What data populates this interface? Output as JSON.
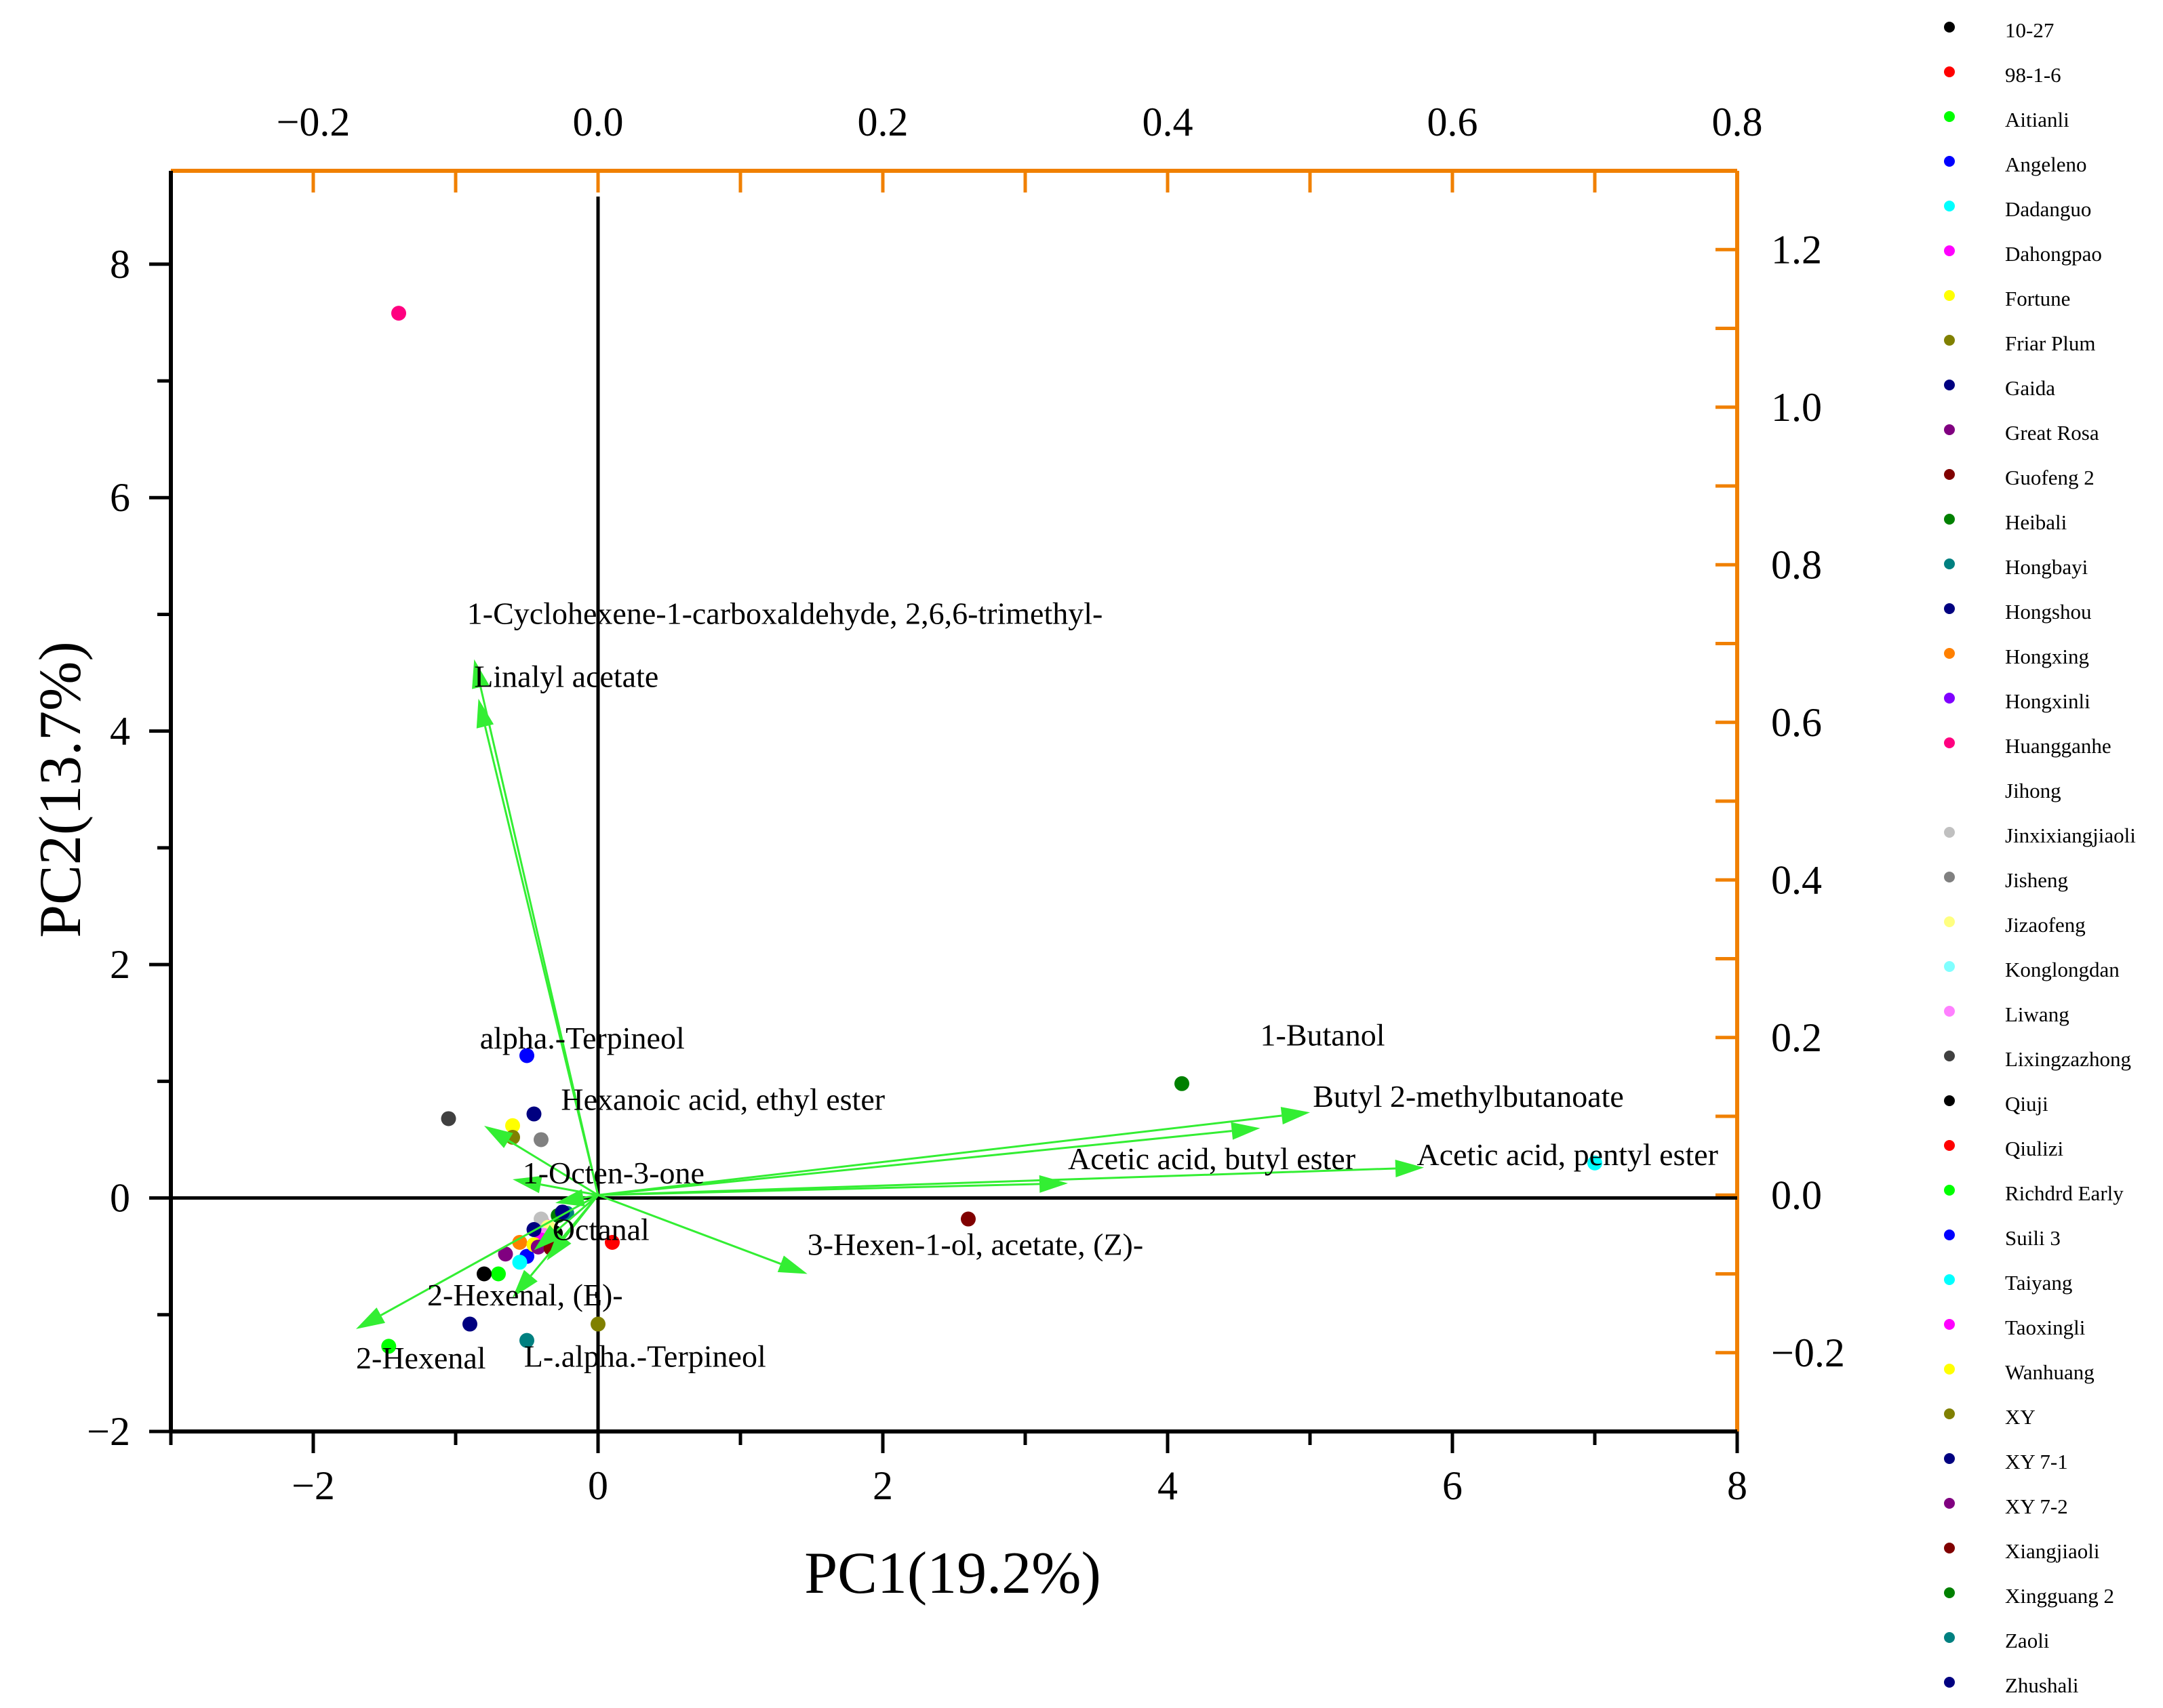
{
  "chart_data": {
    "type": "scatter",
    "subtype": "PCA biplot",
    "title": "",
    "xlabel": "PC1(19.2%)",
    "ylabel": "PC2(13.7%)",
    "xlim": [
      -3,
      8
    ],
    "ylim": [
      -2,
      8.8
    ],
    "xticks": [
      -2,
      0,
      2,
      4,
      6,
      8
    ],
    "yticks": [
      -2,
      0,
      2,
      4,
      6,
      8
    ],
    "xtick_labels": [
      "−2",
      "0",
      "2",
      "4",
      "6",
      "8"
    ],
    "ytick_labels": [
      "−2",
      "0",
      "2",
      "4",
      "6",
      "8"
    ],
    "secondary_axes": {
      "color": "#f08000",
      "top_lim": [
        -0.3,
        0.8
      ],
      "top_ticks": [
        -0.2,
        0.0,
        0.2,
        0.4,
        0.6,
        0.8
      ],
      "top_tick_labels": [
        "−0.2",
        "0.0",
        "0.2",
        "0.4",
        "0.6",
        "0.8"
      ],
      "right_lim": [
        -0.3,
        1.3
      ],
      "right_ticks": [
        -0.2,
        0.0,
        0.2,
        0.4,
        0.6,
        0.8,
        1.0,
        1.2
      ],
      "right_tick_labels": [
        "−0.2",
        "0.0",
        "0.2",
        "0.4",
        "0.6",
        "0.8",
        "1.0",
        "1.2"
      ]
    },
    "grid": false,
    "legend_position": "right",
    "loading_color": "#33ee33",
    "loadings": [
      {
        "name": "1-Cyclohexene-1-carboxaldehyde, 2,6,6-trimethyl-",
        "x": -0.087,
        "y": 0.68,
        "lx": -0.092,
        "ly": 0.725
      },
      {
        "name": "Linalyl acetate",
        "x": -0.084,
        "y": 0.63,
        "lx": -0.087,
        "ly": 0.645
      },
      {
        "name": "alpha.-Terpineol",
        "x": -0.08,
        "y": 0.088,
        "lx": -0.083,
        "ly": 0.186
      },
      {
        "name": "Hexanoic acid, ethyl ester",
        "x": -0.06,
        "y": 0.02,
        "lx": -0.026,
        "ly": 0.108
      },
      {
        "name": "1-Octen-3-one",
        "x": -0.03,
        "y": -0.01,
        "lx": -0.053,
        "ly": 0.015
      },
      {
        "name": "Octanal",
        "x": -0.045,
        "y": -0.07,
        "lx": -0.032,
        "ly": -0.057
      },
      {
        "name": "2-Hexenal, (E)-",
        "x": -0.06,
        "y": -0.13,
        "lx": -0.12,
        "ly": -0.14
      },
      {
        "name": "2-Hexenal",
        "x": -0.17,
        "y": -0.17,
        "lx": -0.17,
        "ly": -0.22
      },
      {
        "name": "L-.alpha.-Terpineol",
        "x": -0.036,
        "y": -0.083,
        "lx": -0.052,
        "ly": -0.218
      },
      {
        "name": "3-Hexen-1-ol, acetate, (Z)-",
        "x": 0.147,
        "y": -0.1,
        "lx": 0.147,
        "ly": -0.076
      },
      {
        "name": "Acetic acid, butyl ester",
        "x": 0.33,
        "y": 0.015,
        "lx": 0.33,
        "ly": 0.033
      },
      {
        "name": "Acetic acid, pentyl ester",
        "x": 0.58,
        "y": 0.035,
        "lx": 0.575,
        "ly": 0.038
      },
      {
        "name": "1-Butanol",
        "x": 0.465,
        "y": 0.085,
        "lx": 0.465,
        "ly": 0.19
      },
      {
        "name": "Butyl 2-methylbutanoate",
        "x": 0.5,
        "y": 0.105,
        "lx": 0.502,
        "ly": 0.112
      }
    ],
    "series": [
      {
        "name": "10-27",
        "color": "#000000",
        "x": -0.3,
        "y": -0.3
      },
      {
        "name": "98-1-6",
        "color": "#ff0000",
        "x": 0.1,
        "y": -0.38
      },
      {
        "name": "Aitianli",
        "color": "#00ff00",
        "x": -0.7,
        "y": -0.65
      },
      {
        "name": "Angeleno",
        "color": "#0000ff",
        "x": -0.5,
        "y": 1.22
      },
      {
        "name": "Dadanguo",
        "color": "#00ffff",
        "x": 7.0,
        "y": 0.3
      },
      {
        "name": "Dahongpao",
        "color": "#ff00ff",
        "x": -0.38,
        "y": -0.22
      },
      {
        "name": "Fortune",
        "color": "#ffff00",
        "x": -0.6,
        "y": 0.62
      },
      {
        "name": "Friar Plum",
        "color": "#808000",
        "x": -0.6,
        "y": 0.52
      },
      {
        "name": "Gaida",
        "color": "#000080",
        "x": -0.9,
        "y": -1.08
      },
      {
        "name": "Great Rosa",
        "color": "#800080",
        "x": -0.65,
        "y": -0.48
      },
      {
        "name": "Guofeng 2",
        "color": "#800000",
        "x": 2.6,
        "y": -0.18
      },
      {
        "name": "Heibali",
        "color": "#008000",
        "x": 4.1,
        "y": 0.98
      },
      {
        "name": "Hongbayi",
        "color": "#008080",
        "x": -0.5,
        "y": -1.22
      },
      {
        "name": "Hongshou",
        "color": "#000080",
        "x": -0.45,
        "y": 0.72
      },
      {
        "name": "Hongxing",
        "color": "#ff8000",
        "x": -0.55,
        "y": -0.38
      },
      {
        "name": "Hongxinli",
        "color": "#8000ff",
        "x": -0.35,
        "y": -0.28
      },
      {
        "name": "Huangganhe",
        "color": "#ff0080",
        "x": -1.4,
        "y": 7.58
      },
      {
        "name": "Jihong",
        "color": "#ffffff",
        "x": -0.3,
        "y": -0.15
      },
      {
        "name": "Jinxixiangjiaoli",
        "color": "#c0c0c0",
        "x": -0.4,
        "y": -0.18
      },
      {
        "name": "Jisheng",
        "color": "#808080",
        "x": -0.4,
        "y": 0.5
      },
      {
        "name": "Jizaofeng",
        "color": "#ffff80",
        "x": -0.35,
        "y": -0.25
      },
      {
        "name": "Konglongdan",
        "color": "#80ffff",
        "x": -0.42,
        "y": -0.3
      },
      {
        "name": "Liwang",
        "color": "#ff80ff",
        "x": -0.38,
        "y": -0.32
      },
      {
        "name": "Lixingzazhong",
        "color": "#404040",
        "x": -1.05,
        "y": 0.68
      },
      {
        "name": "Qiuji",
        "color": "#000000",
        "x": -0.8,
        "y": -0.65
      },
      {
        "name": "Qiulizi",
        "color": "#ff0000",
        "x": -0.35,
        "y": -0.4
      },
      {
        "name": "Richdrd Early",
        "color": "#00ff00",
        "x": -1.47,
        "y": -1.27
      },
      {
        "name": "Suili 3",
        "color": "#0000ff",
        "x": -0.5,
        "y": -0.5
      },
      {
        "name": "Taiyang",
        "color": "#00ffff",
        "x": -0.55,
        "y": -0.55
      },
      {
        "name": "Taoxingli",
        "color": "#ff00ff",
        "x": -0.4,
        "y": -0.36
      },
      {
        "name": "Wanhuang",
        "color": "#ffff00",
        "x": -0.45,
        "y": -0.4
      },
      {
        "name": "XY",
        "color": "#808000",
        "x": 0.0,
        "y": -1.08
      },
      {
        "name": "XY 7-1",
        "color": "#000080",
        "x": -0.45,
        "y": -0.27
      },
      {
        "name": "XY 7-2",
        "color": "#800080",
        "x": -0.42,
        "y": -0.42
      },
      {
        "name": "Xiangjiaoli",
        "color": "#800000",
        "x": -0.33,
        "y": -0.43
      },
      {
        "name": "Xingguang 2",
        "color": "#008000",
        "x": -0.28,
        "y": -0.15
      },
      {
        "name": "Zaoli",
        "color": "#008080",
        "x": -0.22,
        "y": -0.13
      },
      {
        "name": "Zhushali",
        "color": "#000080",
        "x": -0.25,
        "y": -0.12
      }
    ]
  }
}
